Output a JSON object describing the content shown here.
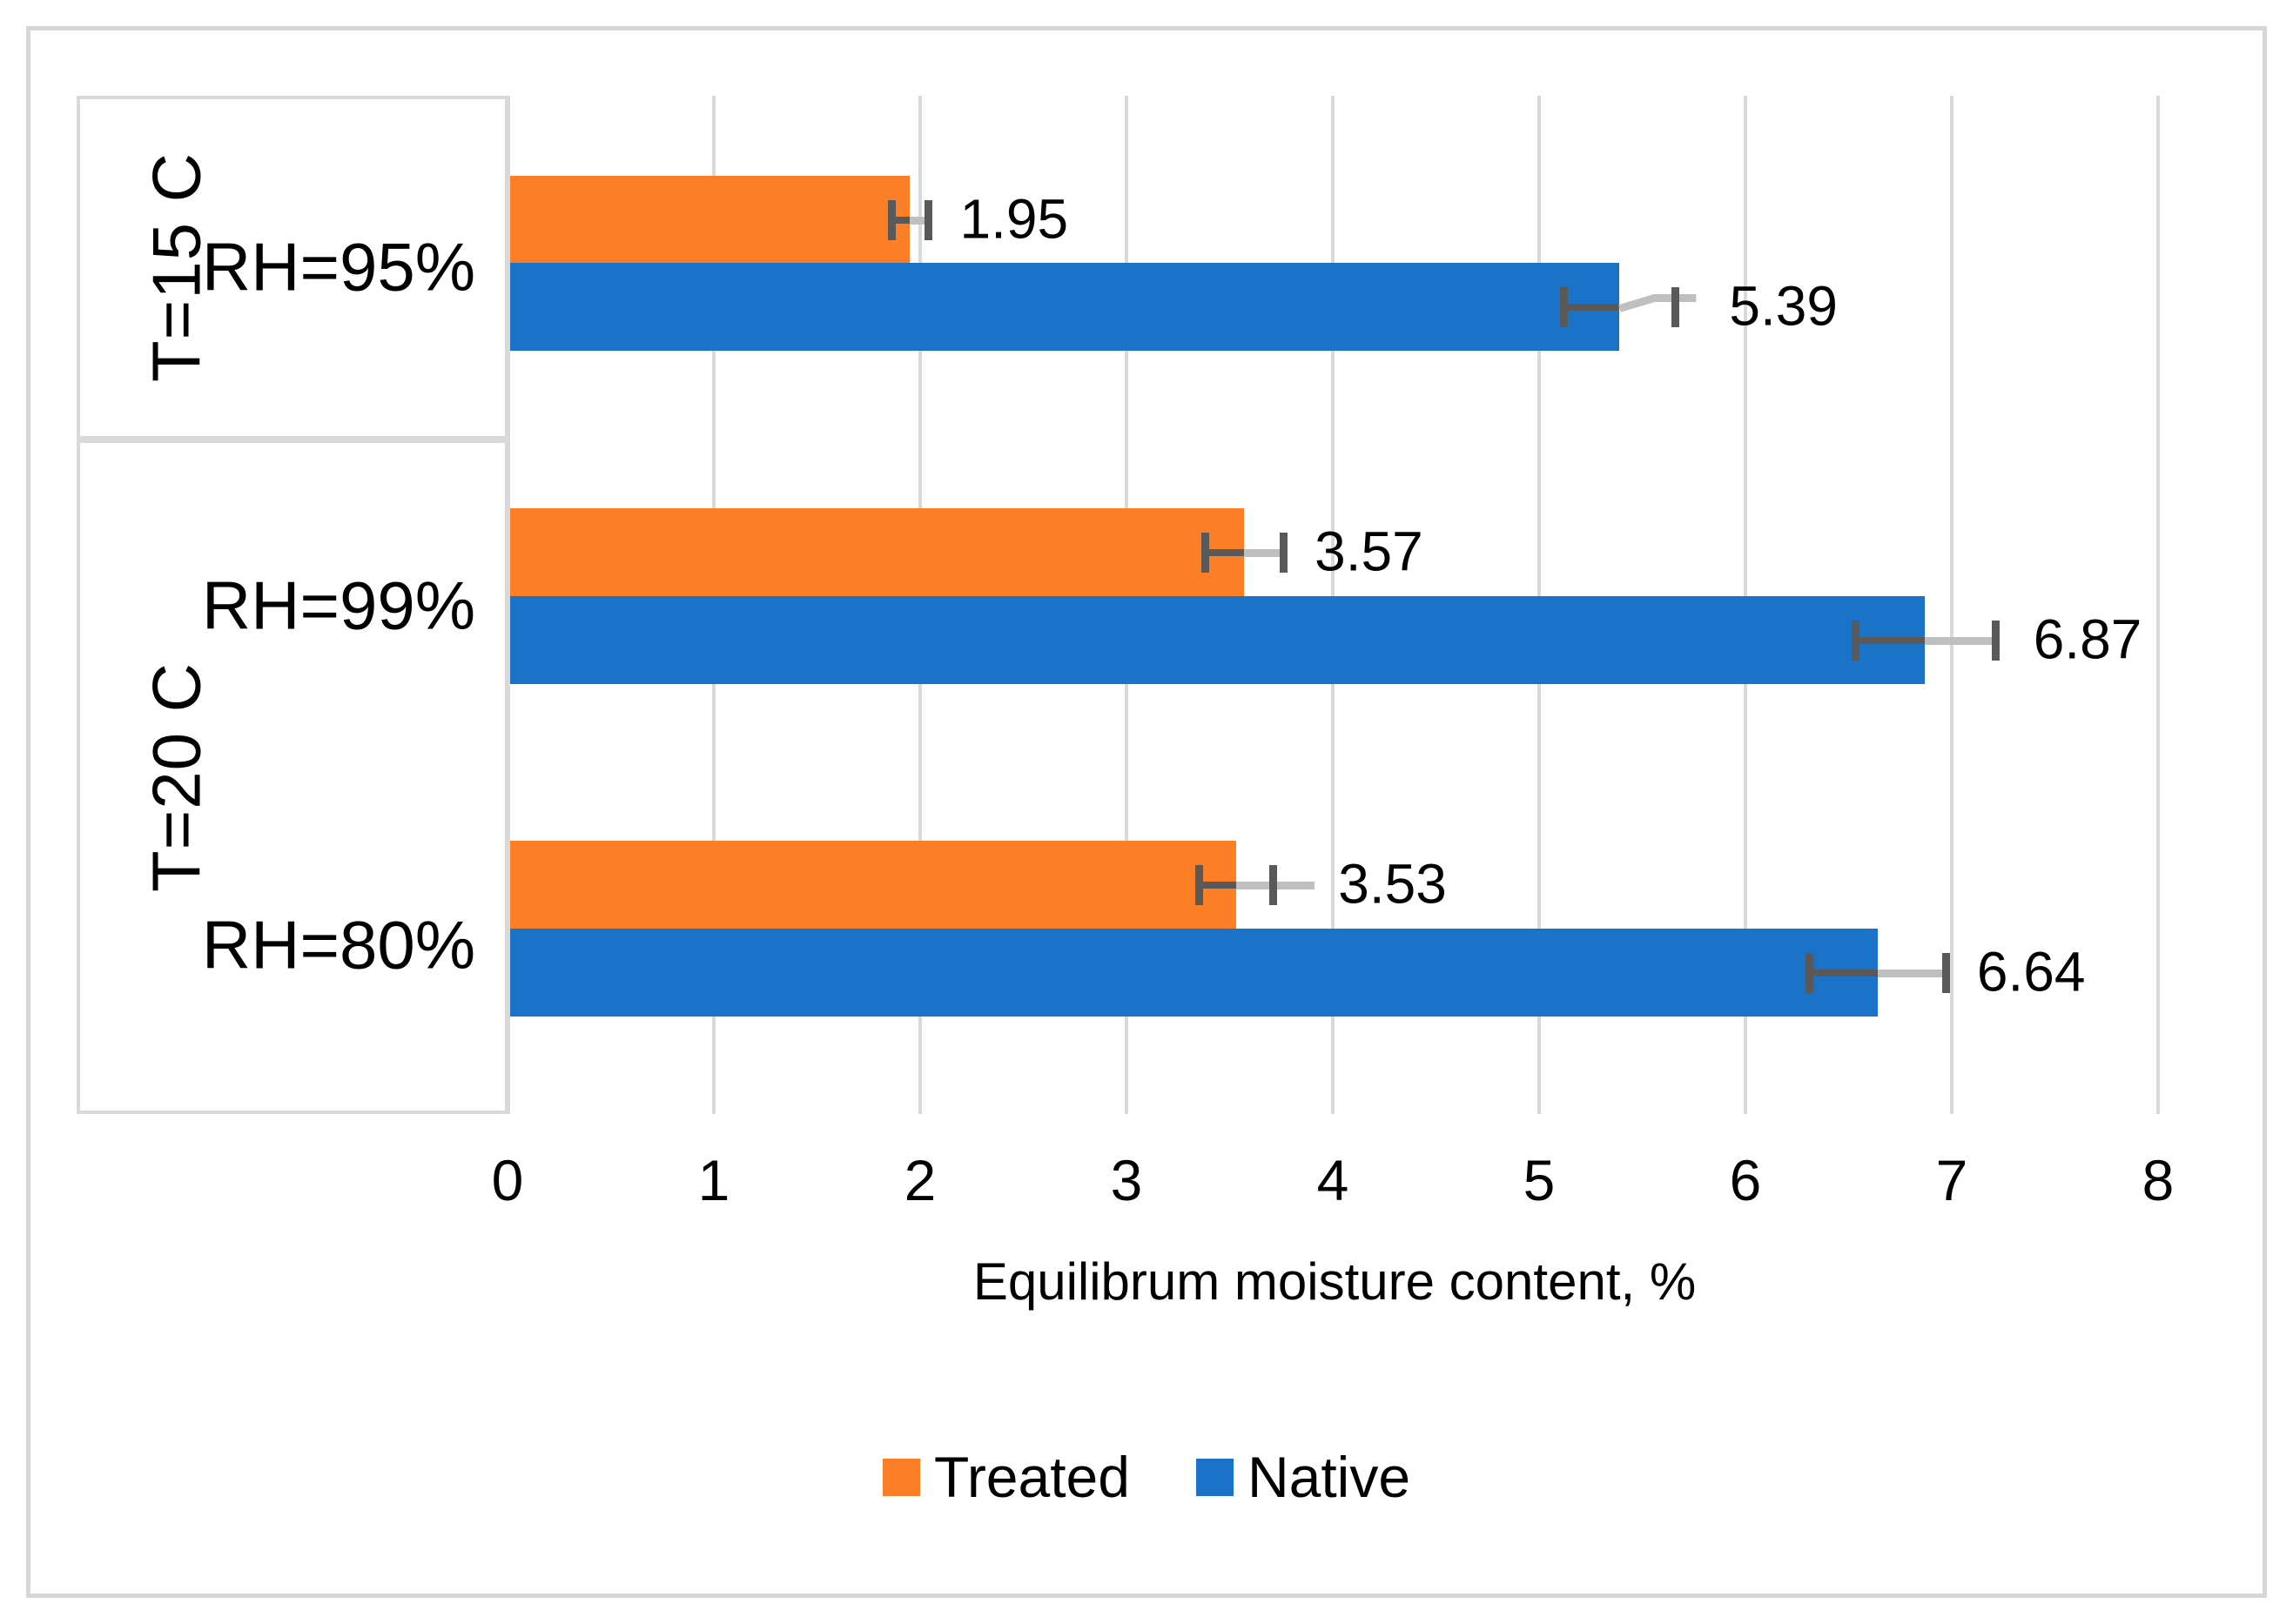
{
  "chart_data": {
    "type": "bar",
    "orientation": "horizontal",
    "xlabel": "Equilibrum moisture content, %",
    "xlim": [
      0,
      8
    ],
    "xticks": [
      "0",
      "1",
      "2",
      "3",
      "4",
      "5",
      "6",
      "7",
      "8"
    ],
    "grid": true,
    "legend_position": "bottom-center",
    "series": [
      {
        "name": "Treated",
        "color": "#FC7E27"
      },
      {
        "name": "Native",
        "color": "#1B73C8"
      }
    ],
    "error_bar_style": {
      "minus_line": "#595959",
      "plus_line": "#BFBFBF",
      "cap": "#595959"
    },
    "groups": [
      {
        "group_label": "T=15 C",
        "rows": [
          {
            "category": "RH=95%",
            "points": [
              {
                "series": "Treated",
                "value": 1.95,
                "label": "1.95",
                "error": 0.09
              },
              {
                "series": "Native",
                "value": 5.39,
                "label": "5.39",
                "error": 0.27,
                "leader": true
              }
            ]
          }
        ]
      },
      {
        "group_label": "T=20 C",
        "rows": [
          {
            "category": "RH=99%",
            "points": [
              {
                "series": "Treated",
                "value": 3.57,
                "label": "3.57",
                "error": 0.19
              },
              {
                "series": "Native",
                "value": 6.87,
                "label": "6.87",
                "error": 0.34
              }
            ]
          },
          {
            "category": "RH=80%",
            "points": [
              {
                "series": "Treated",
                "value": 3.53,
                "label": "3.53",
                "error": 0.18,
                "plus_tail": true
              },
              {
                "series": "Native",
                "value": 6.64,
                "label": "6.64",
                "error": 0.33
              }
            ]
          }
        ]
      }
    ]
  }
}
